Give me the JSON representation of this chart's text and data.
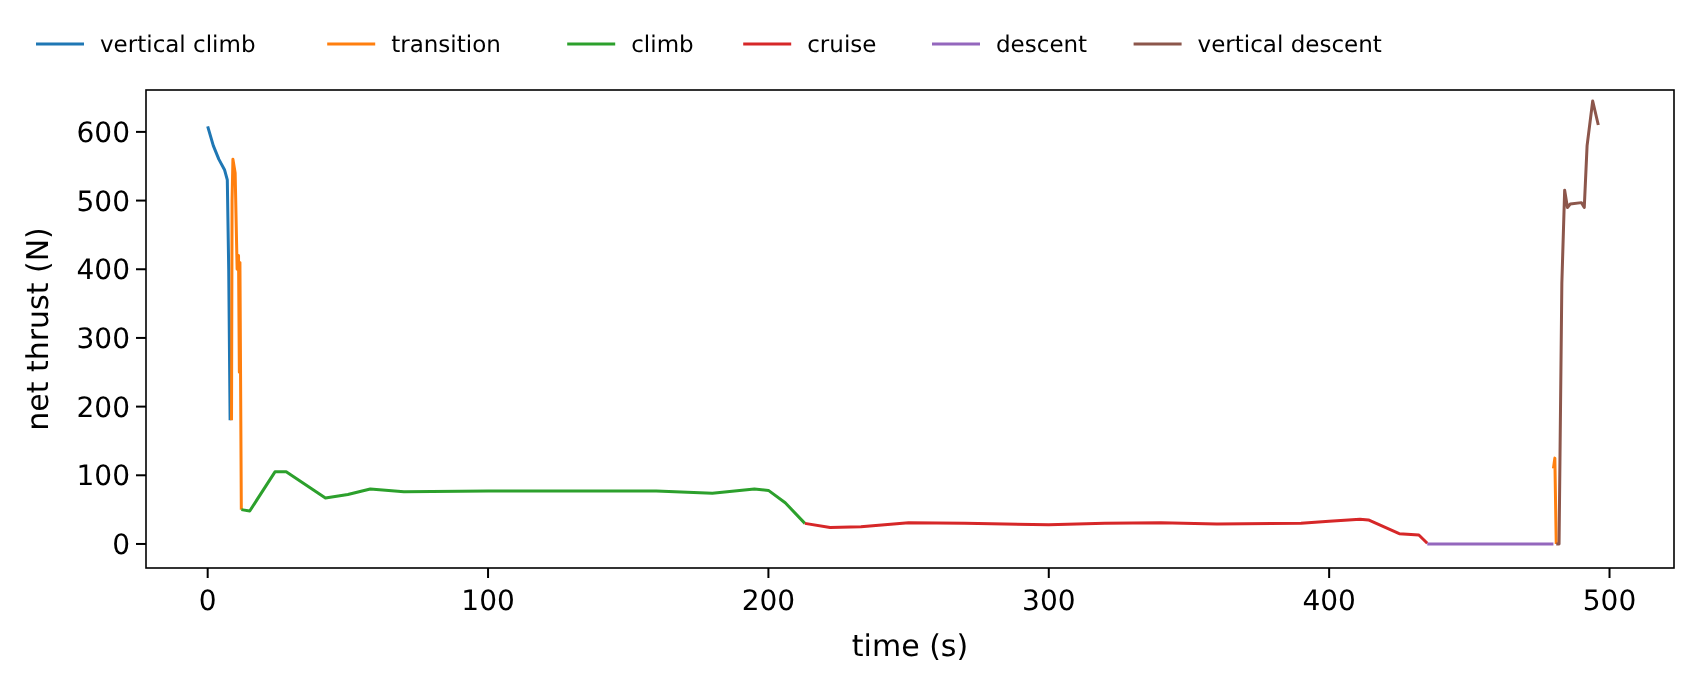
{
  "chart_data": {
    "type": "line",
    "xlabel": "time (s)",
    "ylabel": "net thrust (N)",
    "xlim": [
      -22,
      523
    ],
    "ylim": [
      -35,
      661
    ],
    "xticks": [
      0,
      100,
      200,
      300,
      400,
      500
    ],
    "yticks": [
      0,
      100,
      200,
      300,
      400,
      500,
      600
    ],
    "grid": false,
    "legend": "top left",
    "line_style": "solid",
    "marker": "none",
    "series": [
      {
        "name": "vertical climb",
        "color": "#1f77b4",
        "x": [
          0,
          2,
          4,
          6,
          7,
          7.5,
          8
        ],
        "values": [
          608,
          580,
          560,
          545,
          530,
          400,
          180
        ]
      },
      {
        "name": "transition",
        "color": "#ff7f0e",
        "x": [
          8.5,
          8.7,
          9,
          9.8,
          10.5,
          11,
          11.3,
          11.5,
          12,
          479.5,
          480,
          480.5,
          481
        ],
        "values": [
          180,
          500,
          560,
          540,
          400,
          420,
          250,
          410,
          50,
          null,
          110,
          125,
          0
        ]
      },
      {
        "name": "climb",
        "color": "#2ca02c",
        "x": [
          12,
          15,
          24,
          28,
          42,
          50,
          58,
          70,
          100,
          160,
          180,
          195,
          200,
          206,
          213
        ],
        "values": [
          50,
          48,
          105,
          105,
          67,
          72,
          80,
          76,
          77,
          77,
          74,
          80,
          78,
          60,
          30
        ]
      },
      {
        "name": "cruise",
        "color": "#d62728",
        "x": [
          213,
          222,
          233,
          250,
          270,
          300,
          320,
          340,
          360,
          390,
          400,
          411,
          414,
          425,
          432,
          435
        ],
        "values": [
          30,
          24,
          25,
          31,
          30,
          28,
          30,
          31,
          29,
          30,
          33,
          36,
          35,
          15,
          13,
          1
        ]
      },
      {
        "name": "descent",
        "color": "#9467bd",
        "x": [
          435,
          480
        ],
        "values": [
          0,
          0
        ]
      },
      {
        "name": "vertical descent",
        "color": "#8c564b",
        "x": [
          481,
          482,
          483,
          484,
          485,
          486,
          490,
          491,
          492,
          494,
          496
        ],
        "values": [
          0,
          0,
          380,
          515,
          490,
          495,
          497,
          490,
          580,
          645,
          610
        ]
      }
    ]
  }
}
